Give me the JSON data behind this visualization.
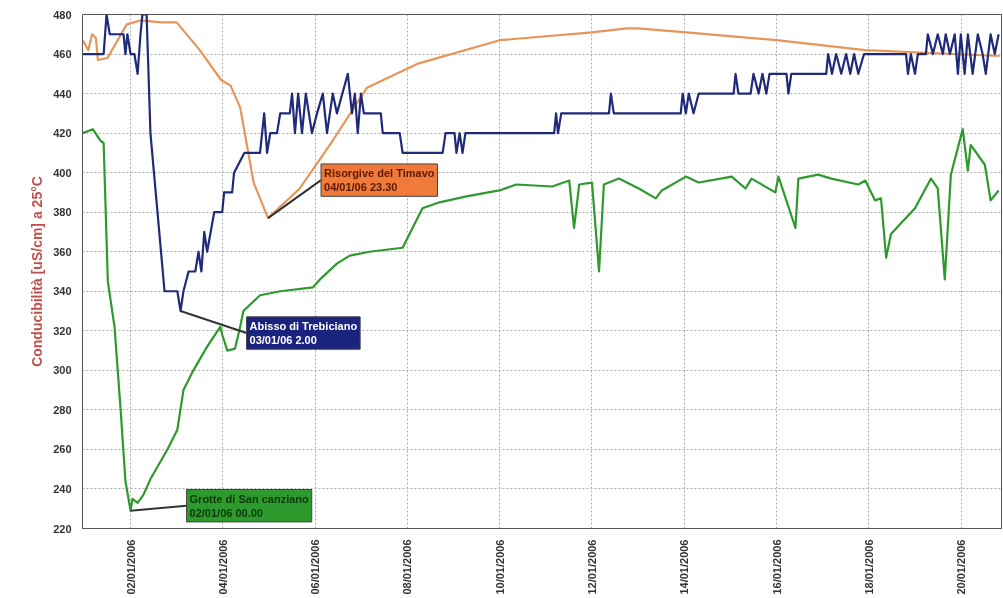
{
  "chart_data": {
    "type": "line",
    "ylabel": "Conducibilità [uS/cm] a 25°C",
    "xlim": [
      "2005-12-31T23:00",
      "2006-01-20T21:00"
    ],
    "ylim": [
      220,
      480
    ],
    "yticks": [
      220,
      240,
      260,
      280,
      300,
      320,
      340,
      360,
      380,
      400,
      420,
      440,
      460,
      480
    ],
    "xticks": [
      {
        "value": "2006-01-02",
        "label": "02/01/2006"
      },
      {
        "value": "2006-01-04",
        "label": "04/01/2006"
      },
      {
        "value": "2006-01-06",
        "label": "06/01/2006"
      },
      {
        "value": "2006-01-08",
        "label": "08/01/2006"
      },
      {
        "value": "2006-01-10",
        "label": "10/01/2006"
      },
      {
        "value": "2006-01-12",
        "label": "12/01/2006"
      },
      {
        "value": "2006-01-14",
        "label": "14/01/2006"
      },
      {
        "value": "2006-01-16",
        "label": "16/01/2006"
      },
      {
        "value": "2006-01-18",
        "label": "18/01/2006"
      },
      {
        "value": "2006-01-20",
        "label": "20/01/2006"
      }
    ],
    "grid": true,
    "line_style": "solid",
    "marker": "none",
    "series": [
      {
        "color": "#e8955a",
        "x": [
          "2005-12-31T23:10",
          "2006-01-01T02:00",
          "2006-01-01T04:00",
          "2006-01-01T06:00",
          "2006-01-01T07:00",
          "2006-01-01T12:00",
          "2006-01-01T22:00",
          "2006-01-02T05:00",
          "2006-01-02T16:00",
          "2006-01-03T00:00",
          "2006-01-03T12:00",
          "2006-01-03T23:00",
          "2006-01-04T04:00",
          "2006-01-04T09:00",
          "2006-01-04T16:00",
          "2006-01-04T23:30",
          "2006-01-05T16:00",
          "2006-01-06T09:00",
          "2006-01-07T03:00",
          "2006-01-08T05:00",
          "2006-01-10T00:00",
          "2006-01-12T00:00",
          "2006-01-12T18:00",
          "2006-01-13T00:00",
          "2006-01-14T01:00",
          "2006-01-16T00:00",
          "2006-01-17T22:00",
          "2006-01-20T20:00"
        ],
        "values": [
          467,
          462,
          470,
          468,
          457,
          458,
          475,
          477,
          476,
          476,
          462,
          447,
          444,
          433,
          395,
          377,
          392,
          416,
          443,
          455,
          467,
          471,
          473,
          473,
          471,
          467,
          462,
          459
        ]
      },
      {
        "color": "#1f2a7a",
        "x": [
          "2005-12-31T23:10",
          "2006-01-01T10:00",
          "2006-01-01T11:30",
          "2006-01-01T13:10",
          "2006-01-01T20:20",
          "2006-01-01T21:20",
          "2006-01-01T22:20",
          "2006-01-02T00:00",
          "2006-01-02T02:00",
          "2006-01-02T03:40",
          "2006-01-02T05:10",
          "2006-01-02T06:10",
          "2006-01-02T08:20",
          "2006-01-02T10:20",
          "2006-01-02T14:00",
          "2006-01-02T17:40",
          "2006-01-03T00:20",
          "2006-01-03T02:00",
          "2006-01-03T03:30",
          "2006-01-03T06:10",
          "2006-01-03T09:40",
          "2006-01-03T11:20",
          "2006-01-03T12:50",
          "2006-01-03T14:20",
          "2006-01-03T15:50",
          "2006-01-03T19:30",
          "2006-01-03T23:40",
          "2006-01-04T00:40",
          "2006-01-04T04:50",
          "2006-01-04T05:50",
          "2006-01-04T11:10",
          "2006-01-04T19:20",
          "2006-01-04T21:30",
          "2006-01-04T23:00",
          "2006-01-05T00:40",
          "2006-01-05T04:10",
          "2006-01-05T05:50",
          "2006-01-05T10:50",
          "2006-01-05T12:00",
          "2006-01-05T13:30",
          "2006-01-05T15:10",
          "2006-01-05T17:10",
          "2006-01-05T19:10",
          "2006-01-05T22:20",
          "2006-01-06T01:00",
          "2006-01-06T04:00",
          "2006-01-06T06:10",
          "2006-01-06T09:10",
          "2006-01-06T11:20",
          "2006-01-06T17:00",
          "2006-01-06T19:10",
          "2006-01-06T20:40",
          "2006-01-06T22:10",
          "2006-01-06T23:50",
          "2006-01-07T01:20",
          "2006-01-07T10:10",
          "2006-01-07T11:10",
          "2006-01-07T20:00",
          "2006-01-07T21:30",
          "2006-01-08T18:20",
          "2006-01-08T19:50",
          "2006-01-09T00:30",
          "2006-01-09T01:30",
          "2006-01-09T03:10",
          "2006-01-09T04:40",
          "2006-01-09T06:10",
          "2006-01-11T04:20",
          "2006-01-11T05:20",
          "2006-01-11T06:20",
          "2006-01-11T08:00",
          "2006-01-12T08:50",
          "2006-01-12T09:50",
          "2006-01-12T11:20",
          "2006-01-13T22:10",
          "2006-01-13T23:10",
          "2006-01-14T00:50",
          "2006-01-14T02:20",
          "2006-01-14T04:50",
          "2006-01-14T07:30",
          "2006-01-15T01:40",
          "2006-01-15T02:40",
          "2006-01-15T04:10",
          "2006-01-15T10:30",
          "2006-01-15T12:00",
          "2006-01-15T14:40",
          "2006-01-15T16:40",
          "2006-01-15T18:40",
          "2006-01-15T20:20",
          "2006-01-16T05:10",
          "2006-01-16T06:10",
          "2006-01-16T07:40",
          "2006-01-17T01:50",
          "2006-01-17T02:50",
          "2006-01-17T04:50",
          "2006-01-17T07:00",
          "2006-01-17T09:40",
          "2006-01-17T12:10",
          "2006-01-17T14:20",
          "2006-01-17T16:20",
          "2006-01-17T18:30",
          "2006-01-17T21:30",
          "2006-01-18T19:20",
          "2006-01-18T20:20",
          "2006-01-18T21:50",
          "2006-01-19T00:00",
          "2006-01-19T01:30",
          "2006-01-19T05:40",
          "2006-01-19T06:40",
          "2006-01-19T09:20",
          "2006-01-19T11:50",
          "2006-01-19T14:30",
          "2006-01-19T16:00",
          "2006-01-19T18:10",
          "2006-01-19T20:40",
          "2006-01-19T22:20",
          "2006-01-19T23:50",
          "2006-01-20T01:50",
          "2006-01-20T03:30",
          "2006-01-20T06:00",
          "2006-01-20T08:40",
          "2006-01-20T11:10",
          "2006-01-20T12:50",
          "2006-01-20T15:20",
          "2006-01-20T17:30",
          "2006-01-20T19:30"
        ],
        "values": [
          460,
          460,
          480,
          470,
          470,
          460,
          470,
          460,
          460,
          450,
          470,
          480,
          480,
          420,
          380,
          340,
          340,
          330,
          340,
          350,
          350,
          360,
          350,
          370,
          360,
          380,
          380,
          390,
          390,
          400,
          410,
          410,
          430,
          410,
          420,
          420,
          430,
          430,
          440,
          420,
          440,
          420,
          440,
          420,
          430,
          440,
          420,
          440,
          430,
          450,
          430,
          440,
          420,
          440,
          430,
          430,
          420,
          420,
          410,
          410,
          420,
          420,
          410,
          420,
          410,
          420,
          420,
          430,
          420,
          430,
          430,
          440,
          430,
          430,
          440,
          430,
          440,
          430,
          440,
          440,
          450,
          440,
          440,
          450,
          440,
          450,
          440,
          450,
          450,
          440,
          450,
          450,
          460,
          450,
          460,
          450,
          460,
          450,
          460,
          450,
          460,
          460,
          450,
          460,
          450,
          460,
          460,
          470,
          460,
          470,
          460,
          470,
          460,
          470,
          450,
          470,
          450,
          470,
          450,
          470,
          460,
          450,
          470,
          460,
          470
        ]
      },
      {
        "color": "#2e9a2e",
        "x": [
          "2005-12-31T23:10",
          "2006-01-01T04:20",
          "2006-01-01T08:30",
          "2006-01-01T10:00",
          "2006-01-01T12:10",
          "2006-01-01T15:40",
          "2006-01-01T18:50",
          "2006-01-01T21:20",
          "2006-01-02T00:00",
          "2006-01-02T01:00",
          "2006-01-02T03:40",
          "2006-01-02T06:40",
          "2006-01-02T10:20",
          "2006-01-02T19:10",
          "2006-01-03T00:20",
          "2006-01-03T03:30",
          "2006-01-03T08:40",
          "2006-01-03T15:50",
          "2006-01-03T22:40",
          "2006-01-03T23:40",
          "2006-01-04T02:20",
          "2006-01-04T06:20",
          "2006-01-04T09:00",
          "2006-01-04T10:40",
          "2006-01-04T19:20",
          "2006-01-05T05:50",
          "2006-01-05T22:50",
          "2006-01-06T02:30",
          "2006-01-06T11:20",
          "2006-01-06T18:00",
          "2006-01-07T04:20",
          "2006-01-07T21:30",
          "2006-01-08T02:40",
          "2006-01-08T07:50",
          "2006-01-08T16:40",
          "2006-01-09T06:40",
          "2006-01-09T23:50",
          "2006-01-10T08:40",
          "2006-01-11T03:20",
          "2006-01-11T12:10",
          "2006-01-11T14:40",
          "2006-01-11T17:20",
          "2006-01-12T00:00",
          "2006-01-12T03:40",
          "2006-01-12T06:10",
          "2006-01-12T14:00",
          "2006-01-13T00:20",
          "2006-01-13T09:10",
          "2006-01-13T12:20",
          "2006-01-14T00:50",
          "2006-01-14T07:30",
          "2006-01-15T00:40",
          "2006-01-15T07:50",
          "2006-01-15T11:00",
          "2006-01-15T23:20",
          "2006-01-16T01:00",
          "2006-01-16T09:50",
          "2006-01-16T11:20",
          "2006-01-16T21:40",
          "2006-01-17T04:30",
          "2006-01-17T18:30",
          "2006-01-17T22:10",
          "2006-01-18T03:10",
          "2006-01-18T06:20",
          "2006-01-18T09:00",
          "2006-01-18T11:30",
          "2006-01-19T00:00",
          "2006-01-19T08:20",
          "2006-01-19T11:50",
          "2006-01-19T15:30",
          "2006-01-19T18:40",
          "2006-01-20T00:50",
          "2006-01-20T03:30",
          "2006-01-20T05:00",
          "2006-01-20T12:20",
          "2006-01-20T15:20",
          "2006-01-20T19:30"
        ],
        "values": [
          420,
          422,
          416,
          415,
          345,
          322,
          280,
          244,
          229,
          235,
          233,
          237,
          245,
          260,
          270,
          290,
          300,
          312,
          322,
          318,
          310,
          311,
          322,
          330,
          338,
          340,
          342,
          346,
          354,
          358,
          360,
          362,
          372,
          382,
          385,
          388,
          391,
          394,
          393,
          396,
          372,
          394,
          395,
          350,
          394,
          397,
          392,
          387,
          391,
          398,
          395,
          398,
          392,
          397,
          390,
          398,
          372,
          397,
          399,
          397,
          394,
          396,
          386,
          387,
          357,
          369,
          382,
          397,
          392,
          346,
          399,
          422,
          401,
          414,
          404,
          386,
          391
        ]
      }
    ],
    "annotations": [
      {
        "text": "Risorgive del Timavo\n04/01/06 23.30",
        "x": "2006-01-04T23:30",
        "y": 377
      },
      {
        "text": "Abisso di Trebiciano\n03/01/06 2.00",
        "x": "2006-01-03T02:00",
        "y": 330
      },
      {
        "text": "Grotte di San canziano\n02/01/06 00.00",
        "x": "2006-01-02T00:00",
        "y": 229
      }
    ]
  }
}
